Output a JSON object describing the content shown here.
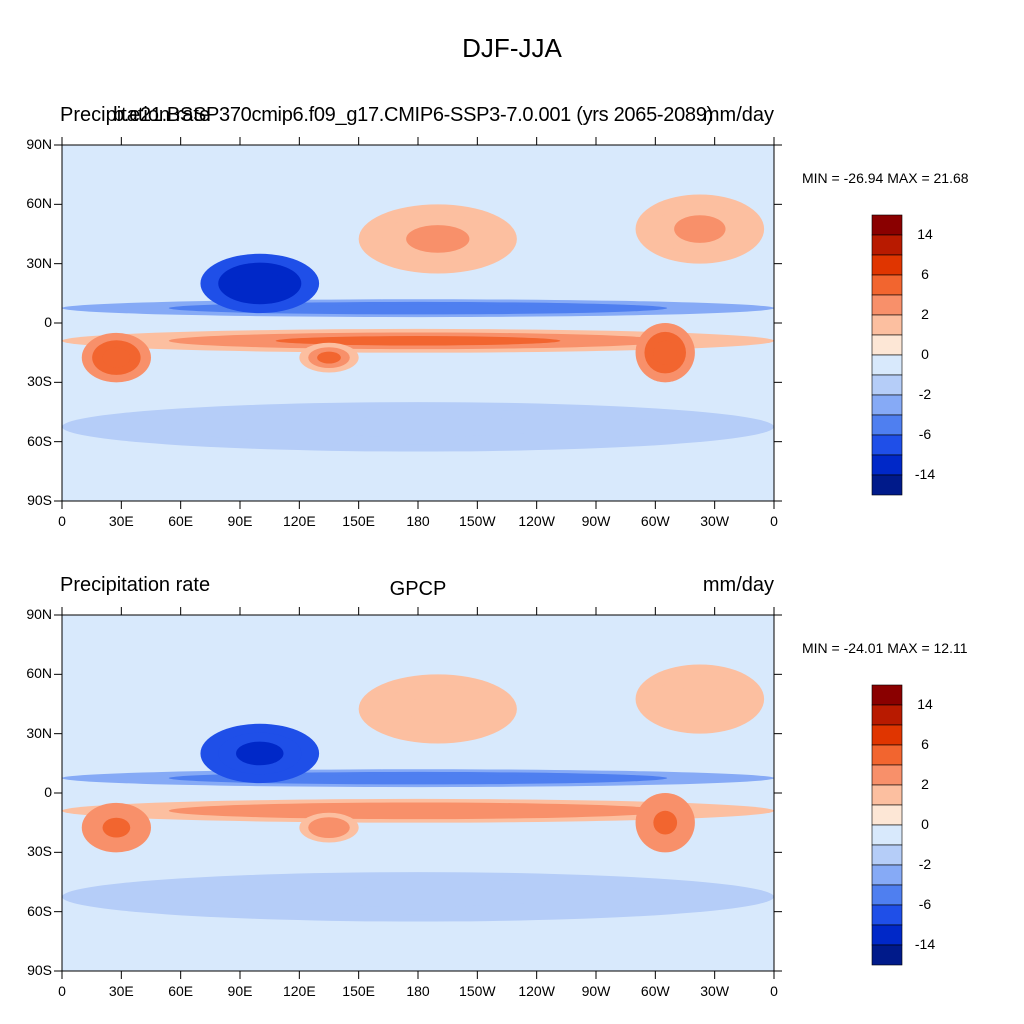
{
  "figure": {
    "title": "DJF-JJA"
  },
  "panels": [
    {
      "left_title": "Precipitation rate",
      "center_title": "b.e21.BSSP370cmip6.f09_g17.CMIP6-SSP3-7.0.001 (yrs 2065-2089)",
      "right_title": "mm/day",
      "min_label": "MIN = -26.94",
      "max_label": "MAX =  21.68"
    },
    {
      "left_title": "Precipitation rate",
      "center_title": "GPCP",
      "right_title": "mm/day",
      "min_label": "MIN = -24.01",
      "max_label": "MAX =  12.11"
    }
  ],
  "chart_data": {
    "type": "heatmap",
    "variable": "Precipitation rate",
    "units": "mm/day",
    "x_ticks": [
      "0",
      "30E",
      "60E",
      "90E",
      "120E",
      "150E",
      "180",
      "150W",
      "120W",
      "90W",
      "60W",
      "30W",
      "0"
    ],
    "y_ticks": [
      "90N",
      "60N",
      "30N",
      "0",
      "30S",
      "60S",
      "90S"
    ],
    "xlim": [
      0,
      360
    ],
    "ylim": [
      -90,
      90
    ],
    "colorbar": {
      "labels": [
        "14",
        "6",
        "2",
        "0",
        "-2",
        "-6",
        "-14"
      ],
      "colors": [
        "#8a0000",
        "#b81a00",
        "#e03500",
        "#f2652f",
        "#f8906a",
        "#fcbfa0",
        "#fde7d6",
        "#d8e9fc",
        "#b5cdf8",
        "#86aaf6",
        "#4f7ff0",
        "#1f4fe8",
        "#0028c8",
        "#001a8a"
      ]
    },
    "panels_minmax": [
      {
        "name": "b.e21.BSSP370cmip6.f09_g17.CMIP6-SSP3-7.0.001",
        "min": -26.94,
        "max": 21.68
      },
      {
        "name": "GPCP",
        "min": -24.01,
        "max": 12.11
      }
    ],
    "features": [
      {
        "name": "ITCZ north band",
        "lon": [
          0,
          360
        ],
        "lat": [
          3,
          12
        ],
        "value": -6
      },
      {
        "name": "ITCZ south band",
        "lon": [
          0,
          360
        ],
        "lat": [
          -15,
          -3
        ],
        "value": 6
      },
      {
        "name": "Asian monsoon",
        "lon": [
          70,
          130
        ],
        "lat": [
          5,
          35
        ],
        "value": -14
      },
      {
        "name": "North Pacific",
        "lon": [
          150,
          230
        ],
        "lat": [
          25,
          60
        ],
        "value": 4
      },
      {
        "name": "North Atlantic",
        "lon": [
          290,
          355
        ],
        "lat": [
          30,
          65
        ],
        "value": 4
      },
      {
        "name": "Southern Africa",
        "lon": [
          10,
          45
        ],
        "lat": [
          -30,
          -5
        ],
        "value": 8
      },
      {
        "name": "South America",
        "lon": [
          290,
          320
        ],
        "lat": [
          -30,
          0
        ],
        "value": 8
      },
      {
        "name": "Northern Australia",
        "lon": [
          120,
          150
        ],
        "lat": [
          -25,
          -10
        ],
        "value": 6
      },
      {
        "name": "Southern Ocean",
        "lon": [
          0,
          360
        ],
        "lat": [
          -65,
          -40
        ],
        "value": -2
      }
    ]
  }
}
